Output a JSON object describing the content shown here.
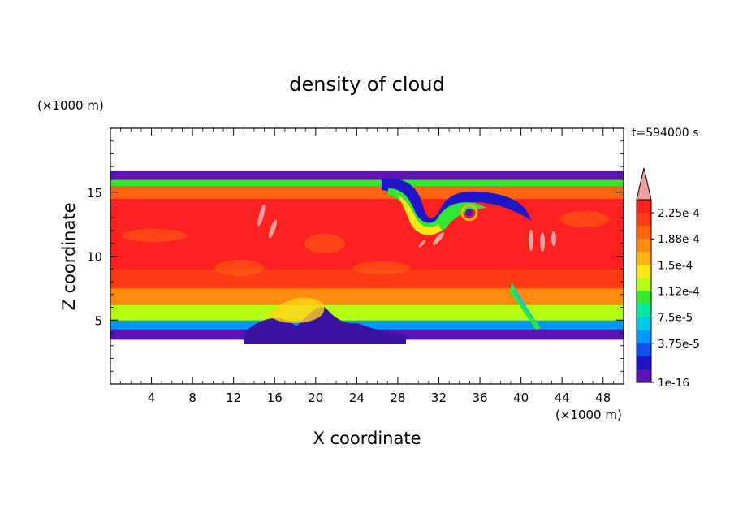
{
  "chart_data": {
    "type": "heatmap",
    "title": "density of cloud",
    "xlabel": "X coordinate",
    "ylabel": "Z coordinate",
    "x_unit": "(×1000 m)",
    "y_unit": "(×1000 m)",
    "time_label": "t=594000 s",
    "xlim": [
      0,
      50
    ],
    "ylim": [
      0,
      20
    ],
    "x_ticks": [
      "4",
      "8",
      "12",
      "16",
      "20",
      "24",
      "28",
      "32",
      "36",
      "40",
      "44",
      "48"
    ],
    "y_ticks": [
      "5",
      "10",
      "15"
    ],
    "colorbar": {
      "labels": [
        "2.25e-4",
        "1.88e-4",
        "1.5e-4",
        "1.12e-4",
        "7.5e-5",
        "3.75e-5",
        "1e-16"
      ],
      "levels_top_to_bottom": [
        {
          "value": "2.44e-4",
          "color": "#ff2020"
        },
        {
          "value": "2.25e-4",
          "color": "#ff3c14"
        },
        {
          "value": "2.06e-4",
          "color": "#ff6410"
        },
        {
          "value": "1.88e-4",
          "color": "#ff8c10"
        },
        {
          "value": "1.69e-4",
          "color": "#ffb414"
        },
        {
          "value": "1.5e-4",
          "color": "#ffe614"
        },
        {
          "value": "1.31e-4",
          "color": "#b4ff14"
        },
        {
          "value": "1.12e-4",
          "color": "#32e632"
        },
        {
          "value": "9.38e-5",
          "color": "#00e6a0"
        },
        {
          "value": "7.5e-5",
          "color": "#00c8e6"
        },
        {
          "value": "5.63e-5",
          "color": "#0096ff"
        },
        {
          "value": "3.75e-5",
          "color": "#1450f0"
        },
        {
          "value": "1.88e-5",
          "color": "#1e14c8"
        },
        {
          "value": "1e-16",
          "color": "#5a14b4"
        }
      ],
      "overflow_color": "#f0a0a0"
    },
    "field_description_bands": [
      {
        "z_from": 3.5,
        "z_to": 4.3,
        "level": "1e-16"
      },
      {
        "z_from": 4.3,
        "z_to": 5.0,
        "level": "5.63e-5"
      },
      {
        "z_from": 5.0,
        "z_to": 6.2,
        "level": "1.31e-4"
      },
      {
        "z_from": 6.2,
        "z_to": 7.5,
        "level": "1.88e-4"
      },
      {
        "z_from": 7.5,
        "z_to": 9.0,
        "level": "2.25e-4"
      },
      {
        "z_from": 9.0,
        "z_to": 14.5,
        "level": "2.44e-4"
      },
      {
        "z_from": 14.5,
        "z_to": 15.5,
        "level": "2.06e-4"
      },
      {
        "z_from": 15.5,
        "z_to": 16.0,
        "level": "1.12e-4"
      },
      {
        "z_from": 16.0,
        "z_to": 16.7,
        "level": "1e-16"
      }
    ]
  }
}
